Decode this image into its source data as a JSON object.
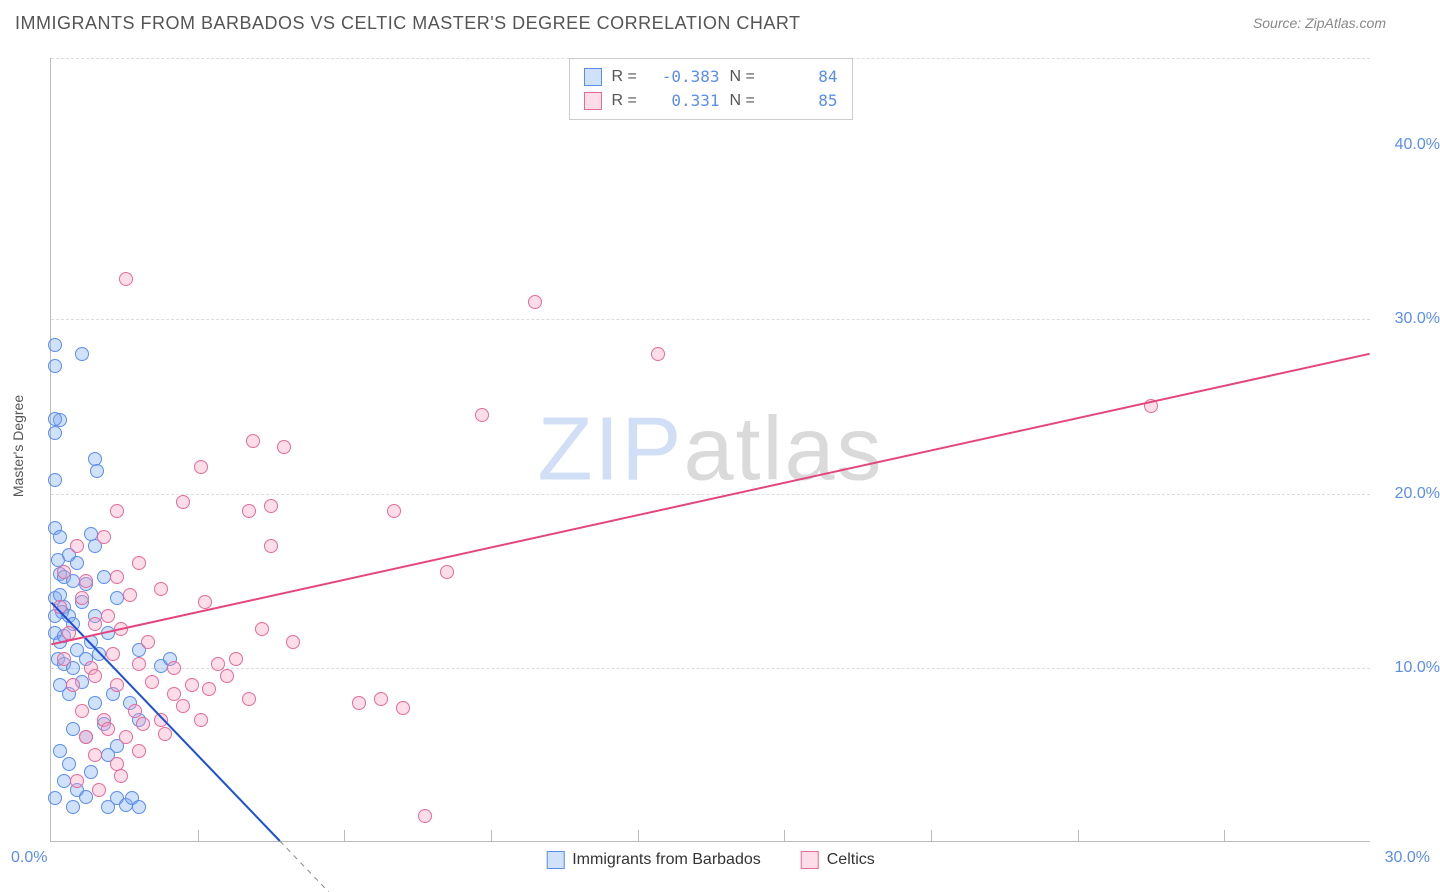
{
  "header": {
    "title": "IMMIGRANTS FROM BARBADOS VS CELTIC MASTER'S DEGREE CORRELATION CHART",
    "source": "Source: ZipAtlas.com"
  },
  "chart": {
    "type": "scatter",
    "background_color": "#ffffff",
    "grid_color": "#dddddd",
    "axis_color": "#bbbbbb",
    "tick_label_color": "#5b8def",
    "tick_label_fontsize": 16,
    "ylabel": "Master's Degree",
    "ylabel_fontsize": 14,
    "xlim": [
      0,
      30
    ],
    "ylim": [
      0,
      45
    ],
    "xticks": [
      {
        "v": 0,
        "l": "0.0%"
      },
      {
        "v": 30,
        "l": "30.0%"
      }
    ],
    "yticks": [
      {
        "v": 10,
        "l": "10.0%"
      },
      {
        "v": 20,
        "l": "20.0%"
      },
      {
        "v": 30,
        "l": "30.0%"
      },
      {
        "v": 40,
        "l": "40.0%"
      }
    ],
    "xgrid_minor": [
      3.33,
      6.66,
      10,
      13.33,
      16.66,
      20,
      23.33,
      26.66
    ],
    "ygrid": [
      10,
      20,
      30,
      45
    ],
    "watermark": {
      "part1": "ZIP",
      "part2": "atlas",
      "fontsize": 90
    },
    "series": [
      {
        "name": "Immigrants from Barbados",
        "marker_fill": "rgba(120,170,240,0.35)",
        "marker_stroke": "#5b8def",
        "marker_size": 14,
        "R": "-0.383",
        "N": "84",
        "trend": {
          "x1": 0,
          "y1": 13.7,
          "x2": 5.2,
          "y2": 0,
          "color": "#1a4fd6",
          "dash_after_x": 5.2,
          "width": 2
        },
        "points": [
          [
            0.1,
            28.5
          ],
          [
            0.7,
            28.0
          ],
          [
            0.1,
            27.3
          ],
          [
            0.2,
            24.2
          ],
          [
            0.1,
            24.3
          ],
          [
            0.1,
            23.5
          ],
          [
            0.1,
            20.8
          ],
          [
            1.0,
            22.0
          ],
          [
            1.05,
            21.3
          ],
          [
            0.1,
            18.0
          ],
          [
            0.2,
            17.5
          ],
          [
            0.9,
            17.7
          ],
          [
            1.0,
            17.0
          ],
          [
            0.15,
            16.2
          ],
          [
            0.2,
            15.4
          ],
          [
            0.3,
            15.2
          ],
          [
            0.5,
            15.0
          ],
          [
            0.4,
            16.5
          ],
          [
            0.6,
            16.0
          ],
          [
            0.1,
            14.0
          ],
          [
            0.2,
            14.2
          ],
          [
            0.3,
            13.5
          ],
          [
            0.8,
            14.8
          ],
          [
            1.2,
            15.2
          ],
          [
            1.5,
            14.0
          ],
          [
            0.1,
            13.0
          ],
          [
            0.25,
            13.2
          ],
          [
            0.4,
            13.0
          ],
          [
            0.5,
            12.5
          ],
          [
            0.7,
            13.8
          ],
          [
            1.0,
            13.0
          ],
          [
            1.3,
            12.0
          ],
          [
            0.1,
            12.0
          ],
          [
            0.2,
            11.5
          ],
          [
            0.3,
            11.8
          ],
          [
            0.6,
            11.0
          ],
          [
            0.9,
            11.5
          ],
          [
            0.15,
            10.5
          ],
          [
            0.3,
            10.2
          ],
          [
            0.5,
            10.0
          ],
          [
            0.8,
            10.5
          ],
          [
            1.1,
            10.8
          ],
          [
            2.0,
            11.0
          ],
          [
            2.5,
            10.1
          ],
          [
            2.7,
            10.5
          ],
          [
            0.2,
            9.0
          ],
          [
            0.4,
            8.5
          ],
          [
            0.7,
            9.2
          ],
          [
            1.0,
            8.0
          ],
          [
            1.4,
            8.5
          ],
          [
            1.8,
            8.0
          ],
          [
            0.5,
            6.5
          ],
          [
            0.8,
            6.0
          ],
          [
            1.2,
            6.8
          ],
          [
            1.5,
            5.5
          ],
          [
            2.0,
            7.0
          ],
          [
            0.4,
            4.5
          ],
          [
            0.9,
            4.0
          ],
          [
            1.3,
            5.0
          ],
          [
            0.2,
            5.2
          ],
          [
            0.1,
            2.5
          ],
          [
            0.5,
            2.0
          ],
          [
            0.8,
            2.6
          ],
          [
            1.3,
            2.0
          ],
          [
            1.5,
            2.5
          ],
          [
            1.7,
            2.1
          ],
          [
            1.85,
            2.5
          ],
          [
            2.0,
            2.0
          ],
          [
            0.3,
            3.5
          ],
          [
            0.6,
            3.0
          ]
        ]
      },
      {
        "name": "Celtics",
        "marker_fill": "rgba(250,160,190,0.35)",
        "marker_stroke": "#e76a9b",
        "marker_size": 14,
        "R": "0.331",
        "N": "85",
        "trend": {
          "x1": 0,
          "y1": 11.3,
          "x2": 30,
          "y2": 28.0,
          "color": "#e4457e",
          "width": 2
        },
        "points": [
          [
            1.7,
            32.3
          ],
          [
            11.0,
            31.0
          ],
          [
            13.8,
            28.0
          ],
          [
            25.0,
            25.0
          ],
          [
            9.8,
            24.5
          ],
          [
            4.6,
            23.0
          ],
          [
            5.3,
            22.7
          ],
          [
            3.4,
            21.5
          ],
          [
            1.5,
            19.0
          ],
          [
            3.0,
            19.5
          ],
          [
            4.5,
            19.0
          ],
          [
            5.0,
            19.3
          ],
          [
            7.8,
            19.0
          ],
          [
            0.6,
            17.0
          ],
          [
            1.2,
            17.5
          ],
          [
            2.0,
            16.0
          ],
          [
            5.0,
            17.0
          ],
          [
            0.3,
            15.5
          ],
          [
            0.8,
            15.0
          ],
          [
            1.5,
            15.2
          ],
          [
            2.5,
            14.5
          ],
          [
            9.0,
            15.5
          ],
          [
            0.2,
            13.5
          ],
          [
            0.7,
            14.0
          ],
          [
            1.3,
            13.0
          ],
          [
            1.8,
            14.2
          ],
          [
            3.5,
            13.8
          ],
          [
            0.4,
            12.0
          ],
          [
            1.0,
            12.5
          ],
          [
            1.6,
            12.2
          ],
          [
            2.2,
            11.5
          ],
          [
            4.8,
            12.2
          ],
          [
            5.5,
            11.5
          ],
          [
            0.3,
            10.5
          ],
          [
            0.9,
            10.0
          ],
          [
            1.4,
            10.8
          ],
          [
            2.0,
            10.2
          ],
          [
            2.8,
            10.0
          ],
          [
            3.8,
            10.2
          ],
          [
            4.2,
            10.5
          ],
          [
            0.5,
            9.0
          ],
          [
            1.0,
            9.5
          ],
          [
            1.5,
            9.0
          ],
          [
            2.3,
            9.2
          ],
          [
            2.8,
            8.5
          ],
          [
            3.2,
            9.0
          ],
          [
            3.6,
            8.8
          ],
          [
            4.0,
            9.5
          ],
          [
            4.5,
            8.2
          ],
          [
            0.7,
            7.5
          ],
          [
            1.2,
            7.0
          ],
          [
            1.9,
            7.5
          ],
          [
            2.5,
            7.0
          ],
          [
            3.0,
            7.8
          ],
          [
            3.4,
            7.0
          ],
          [
            7.0,
            8.0
          ],
          [
            7.5,
            8.2
          ],
          [
            8.0,
            7.7
          ],
          [
            0.8,
            6.0
          ],
          [
            1.3,
            6.5
          ],
          [
            1.7,
            6.0
          ],
          [
            2.1,
            6.8
          ],
          [
            2.6,
            6.2
          ],
          [
            1.0,
            5.0
          ],
          [
            1.5,
            4.5
          ],
          [
            2.0,
            5.2
          ],
          [
            0.6,
            3.5
          ],
          [
            1.1,
            3.0
          ],
          [
            1.6,
            3.8
          ],
          [
            8.5,
            1.5
          ]
        ]
      }
    ],
    "legend_bottom": [
      {
        "swatch_fill": "rgba(120,170,240,0.35)",
        "swatch_stroke": "#5b8def",
        "label": "Immigrants from Barbados"
      },
      {
        "swatch_fill": "rgba(250,160,190,0.35)",
        "swatch_stroke": "#e76a9b",
        "label": "Celtics"
      }
    ]
  }
}
